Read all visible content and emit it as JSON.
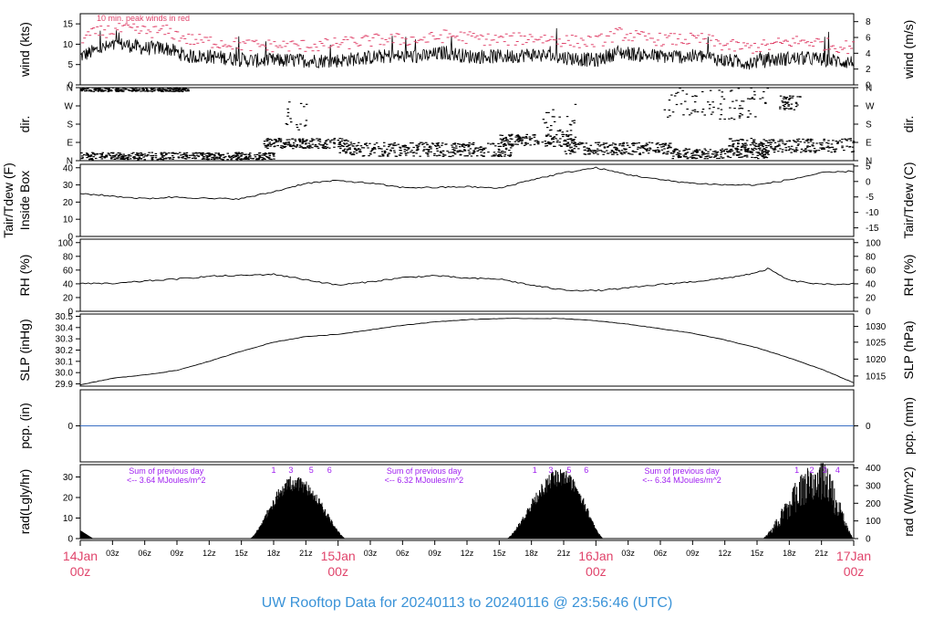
{
  "title": "UW Rooftop Data for 20240113  to  20240116 @ 23:56:46  (UTC)",
  "colors": {
    "accent_red": "#e0446b",
    "peak_wind": "#e0446b",
    "precip_line": "#3a6fc4",
    "rad_annotation": "#a020f0",
    "title_blue": "#3a93d8",
    "trace": "#000000"
  },
  "chart_data": {
    "type": "line",
    "x_axis": {
      "unit": "hours since 14Jan 00z",
      "range": [
        0,
        72
      ],
      "minor_ticks": [
        {
          "h": 3,
          "label": "03z"
        },
        {
          "h": 6,
          "label": "06z"
        },
        {
          "h": 9,
          "label": "09z"
        },
        {
          "h": 12,
          "label": "12z"
        },
        {
          "h": 15,
          "label": "15z"
        },
        {
          "h": 18,
          "label": "18z"
        },
        {
          "h": 21,
          "label": "21z"
        },
        {
          "h": 27,
          "label": "03z"
        },
        {
          "h": 30,
          "label": "06z"
        },
        {
          "h": 33,
          "label": "09z"
        },
        {
          "h": 36,
          "label": "12z"
        },
        {
          "h": 39,
          "label": "15z"
        },
        {
          "h": 42,
          "label": "18z"
        },
        {
          "h": 45,
          "label": "21z"
        },
        {
          "h": 51,
          "label": "03z"
        },
        {
          "h": 54,
          "label": "06z"
        },
        {
          "h": 57,
          "label": "09z"
        },
        {
          "h": 60,
          "label": "12z"
        },
        {
          "h": 63,
          "label": "15z"
        },
        {
          "h": 66,
          "label": "18z"
        },
        {
          "h": 69,
          "label": "21z"
        }
      ],
      "day_ticks": [
        {
          "h": 0,
          "day": "14Jan",
          "z": "00z"
        },
        {
          "h": 24,
          "day": "15Jan",
          "z": "00z"
        },
        {
          "h": 48,
          "day": "16Jan",
          "z": "00z"
        },
        {
          "h": 72,
          "day": "17Jan",
          "z": "00z"
        }
      ]
    },
    "panels": [
      {
        "id": "wind",
        "left_label": "wind (kts)",
        "right_label": "wind (m/s)",
        "ylim": [
          0,
          17.5
        ],
        "left_ticks": [
          {
            "v": 0,
            "t": "0"
          },
          {
            "v": 5,
            "t": "5"
          },
          {
            "v": 10,
            "t": "10"
          },
          {
            "v": 15,
            "t": "15"
          }
        ],
        "right_ticks": [
          {
            "v": 0,
            "t": "0"
          },
          {
            "v": 3.89,
            "t": "2"
          },
          {
            "v": 7.78,
            "t": "4"
          },
          {
            "v": 11.66,
            "t": "6"
          },
          {
            "v": 15.55,
            "t": "8"
          }
        ],
        "annotation": "10 min. peak winds in red",
        "series": [
          {
            "name": "wind",
            "kind": "noisy",
            "x": [
              0,
              2,
              4,
              6,
              8,
              10,
              12,
              14,
              16,
              18,
              20,
              22,
              24,
              26,
              28,
              30,
              32,
              34,
              36,
              38,
              40,
              42,
              44,
              46,
              48,
              50,
              52,
              54,
              56,
              58,
              60,
              62,
              64,
              66,
              68,
              70,
              72
            ],
            "y": [
              7,
              9,
              10,
              9,
              9,
              7,
              7,
              6.5,
              6,
              6,
              6,
              6,
              6,
              6.5,
              7,
              7,
              7,
              8,
              7,
              7,
              7,
              7.5,
              7,
              6.5,
              6,
              8,
              7.5,
              7,
              7,
              7,
              6,
              5.5,
              6,
              6.5,
              6.5,
              6,
              5.5
            ]
          },
          {
            "name": "10 min. peak winds",
            "kind": "dashes",
            "x": [
              0,
              2,
              4,
              6,
              8,
              10,
              12,
              14,
              16,
              18,
              20,
              22,
              24,
              26,
              28,
              30,
              32,
              34,
              36,
              38,
              40,
              42,
              44,
              46,
              48,
              50,
              52,
              54,
              56,
              58,
              60,
              62,
              64,
              66,
              68,
              70,
              72
            ],
            "y": [
              11,
              12.5,
              13,
              12.5,
              12.5,
              10.5,
              10,
              9.5,
              9,
              9,
              9,
              9,
              9.5,
              10,
              10.5,
              10.5,
              10.5,
              11.5,
              11,
              10.5,
              10.5,
              11,
              10.5,
              10,
              10,
              12,
              11,
              10.5,
              10.5,
              10.5,
              9,
              8.5,
              9,
              10,
              10,
              9,
              8.5
            ]
          }
        ]
      },
      {
        "id": "dir",
        "left_label": "dir.",
        "right_label": "dir.",
        "ylim": [
          0,
          360
        ],
        "left_ticks": [
          {
            "v": 0,
            "t": "N"
          },
          {
            "v": 90,
            "t": "E"
          },
          {
            "v": 180,
            "t": "S"
          },
          {
            "v": 270,
            "t": "W"
          },
          {
            "v": 360,
            "t": "N"
          }
        ],
        "right_ticks": [
          {
            "v": 0,
            "t": "N"
          },
          {
            "v": 90,
            "t": "E"
          },
          {
            "v": 180,
            "t": "S"
          },
          {
            "v": 270,
            "t": "W"
          },
          {
            "v": 360,
            "t": "N"
          }
        ],
        "series": [
          {
            "name": "direction",
            "kind": "scatter",
            "clusters": [
              {
                "from": 0,
                "to": 10,
                "lo": 340,
                "hi": 360
              },
              {
                "from": 0,
                "to": 18,
                "lo": 5,
                "hi": 40
              },
              {
                "from": 17,
                "to": 25,
                "lo": 60,
                "hi": 110
              },
              {
                "from": 19,
                "to": 21,
                "lo": 120,
                "hi": 300
              },
              {
                "from": 24,
                "to": 40,
                "lo": 20,
                "hi": 90
              },
              {
                "from": 39,
                "to": 46,
                "lo": 70,
                "hi": 130
              },
              {
                "from": 43,
                "to": 46,
                "lo": 140,
                "hi": 280
              },
              {
                "from": 45,
                "to": 55,
                "lo": 30,
                "hi": 90
              },
              {
                "from": 55,
                "to": 64,
                "lo": 10,
                "hi": 60
              },
              {
                "from": 54,
                "to": 64,
                "lo": 200,
                "hi": 360
              },
              {
                "from": 60,
                "to": 72,
                "lo": 40,
                "hi": 110
              },
              {
                "from": 65,
                "to": 67,
                "lo": 250,
                "hi": 320
              }
            ]
          }
        ]
      },
      {
        "id": "temp",
        "left_label": "Tair/Tdew (F)",
        "left_label2": "Inside Box",
        "right_label": "Tair/Tdew (C)",
        "ylim": [
          0,
          42
        ],
        "left_ticks": [
          {
            "v": 0,
            "t": "0"
          },
          {
            "v": 10,
            "t": "10"
          },
          {
            "v": 20,
            "t": "20"
          },
          {
            "v": 30,
            "t": "30"
          },
          {
            "v": 40,
            "t": "40"
          }
        ],
        "right_ticks": [
          {
            "v": 5,
            "t": "-15"
          },
          {
            "v": 14,
            "t": "-10"
          },
          {
            "v": 23,
            "t": "-5"
          },
          {
            "v": 32,
            "t": "0"
          },
          {
            "v": 41,
            "t": "5"
          }
        ],
        "series": [
          {
            "name": "Tair",
            "kind": "smooth",
            "x": [
              0,
              3,
              6,
              9,
              12,
              15,
              18,
              21,
              24,
              27,
              30,
              33,
              36,
              39,
              42,
              45,
              48,
              51,
              54,
              57,
              60,
              63,
              66,
              69,
              72
            ],
            "y": [
              25,
              23.5,
              22,
              23,
              22,
              22,
              26,
              31,
              32.5,
              31,
              28.5,
              28.5,
              29,
              28,
              33,
              37,
              40,
              36,
              33,
              31,
              30,
              30,
              33,
              37,
              38
            ]
          }
        ]
      },
      {
        "id": "rh",
        "left_label": "RH (%)",
        "right_label": "RH (%)",
        "ylim": [
          0,
          105
        ],
        "left_ticks": [
          {
            "v": 0,
            "t": "0"
          },
          {
            "v": 20,
            "t": "20"
          },
          {
            "v": 40,
            "t": "40"
          },
          {
            "v": 60,
            "t": "60"
          },
          {
            "v": 80,
            "t": "80"
          },
          {
            "v": 100,
            "t": "100"
          }
        ],
        "right_ticks": [
          {
            "v": 0,
            "t": "0"
          },
          {
            "v": 20,
            "t": "20"
          },
          {
            "v": 40,
            "t": "40"
          },
          {
            "v": 60,
            "t": "60"
          },
          {
            "v": 80,
            "t": "80"
          },
          {
            "v": 100,
            "t": "100"
          }
        ],
        "series": [
          {
            "name": "RH",
            "kind": "smooth",
            "x": [
              0,
              3,
              6,
              9,
              12,
              15,
              18,
              21,
              24,
              27,
              30,
              33,
              36,
              39,
              42,
              45,
              48,
              51,
              54,
              57,
              60,
              63,
              64,
              66,
              69,
              72
            ],
            "y": [
              41,
              40,
              44,
              47,
              51,
              52,
              54,
              46,
              38,
              43,
              49,
              52,
              48,
              47,
              38,
              31,
              30,
              34,
              39,
              43,
              48,
              56,
              62,
              45,
              39,
              40
            ]
          }
        ]
      },
      {
        "id": "slp",
        "left_label": "SLP (inHg)",
        "right_label": "SLP (hPa)",
        "ylim": [
          29.88,
          30.52
        ],
        "left_ticks": [
          {
            "v": 29.9,
            "t": "29.9"
          },
          {
            "v": 30.0,
            "t": "30.0"
          },
          {
            "v": 30.1,
            "t": "30.1"
          },
          {
            "v": 30.2,
            "t": "30.2"
          },
          {
            "v": 30.3,
            "t": "30.3"
          },
          {
            "v": 30.4,
            "t": "30.4"
          },
          {
            "v": 30.5,
            "t": "30.5"
          }
        ],
        "right_ticks": [
          {
            "v": 29.97,
            "t": "1015"
          },
          {
            "v": 30.12,
            "t": "1020"
          },
          {
            "v": 30.27,
            "t": "1025"
          },
          {
            "v": 30.41,
            "t": "1030"
          }
        ],
        "series": [
          {
            "name": "SLP",
            "kind": "smooth",
            "x": [
              0,
              3,
              6,
              9,
              12,
              15,
              18,
              21,
              24,
              27,
              30,
              33,
              36,
              39,
              42,
              45,
              48,
              51,
              54,
              57,
              60,
              63,
              66,
              69,
              72
            ],
            "y": [
              29.89,
              29.95,
              29.98,
              30.02,
              30.1,
              30.19,
              30.27,
              30.32,
              30.34,
              30.38,
              30.42,
              30.45,
              30.47,
              30.48,
              30.48,
              30.48,
              30.46,
              30.43,
              30.39,
              30.35,
              30.29,
              30.22,
              30.13,
              30.03,
              29.91
            ]
          }
        ]
      },
      {
        "id": "pcp",
        "left_label": "pcp. (in)",
        "right_label": "pcp. (mm)",
        "ylim": [
          -1,
          1
        ],
        "left_ticks": [
          {
            "v": 0,
            "t": "0"
          }
        ],
        "right_ticks": [
          {
            "v": 0,
            "t": "0"
          }
        ],
        "series": [
          {
            "name": "pcp",
            "kind": "flat",
            "x": [
              0,
              72
            ],
            "y": [
              0,
              0
            ]
          }
        ]
      },
      {
        "id": "rad",
        "left_label": "rad(Lgly/hr)",
        "right_label": "rad (W/m^2)",
        "ylim": [
          0,
          36
        ],
        "left_ticks": [
          {
            "v": 0,
            "t": "0"
          },
          {
            "v": 10,
            "t": "10"
          },
          {
            "v": 20,
            "t": "20"
          },
          {
            "v": 30,
            "t": "30"
          }
        ],
        "right_ticks": [
          {
            "v": 0,
            "t": "0"
          },
          {
            "v": 8.6,
            "t": "100"
          },
          {
            "v": 17.2,
            "t": "200"
          },
          {
            "v": 25.8,
            "t": "300"
          },
          {
            "v": 34.4,
            "t": "400"
          }
        ],
        "annotations": [
          {
            "h": 8,
            "l1": "Sum of previous day",
            "l2": "<-- 3.64 MJoules/m^2"
          },
          {
            "h": 32,
            "l1": "Sum of previous day",
            "l2": "<-- 6.32 MJoules/m^2"
          },
          {
            "h": 56,
            "l1": "Sum of previous day",
            "l2": "<-- 6.34 MJoules/m^2"
          }
        ],
        "hour_marks": [
          {
            "h": 18,
            "t": "1"
          },
          {
            "h": 19.6,
            "t": "3"
          },
          {
            "h": 21.5,
            "t": "5"
          },
          {
            "h": 23.2,
            "t": "6"
          },
          {
            "h": 42.3,
            "t": "1"
          },
          {
            "h": 43.8,
            "t": "3"
          },
          {
            "h": 45.5,
            "t": "5"
          },
          {
            "h": 47.1,
            "t": "6"
          },
          {
            "h": 66.7,
            "t": "1"
          },
          {
            "h": 68.1,
            "t": "2"
          },
          {
            "h": 69.3,
            "t": "3"
          },
          {
            "h": 70.5,
            "t": "4"
          }
        ],
        "series": [
          {
            "name": "radiation",
            "kind": "bars",
            "days": [
              {
                "start": 15.8,
                "end": 24.7,
                "peak": 31,
                "peak_h": 20.0
              },
              {
                "start": 39.7,
                "end": 48.7,
                "peak": 34,
                "peak_h": 44.8
              },
              {
                "start": 63.5,
                "end": 72.0,
                "peak": 38,
                "peak_h": 68.8
              }
            ],
            "early": {
              "start": 0,
              "end": 1.2,
              "peak": 4
            }
          }
        ]
      }
    ]
  }
}
